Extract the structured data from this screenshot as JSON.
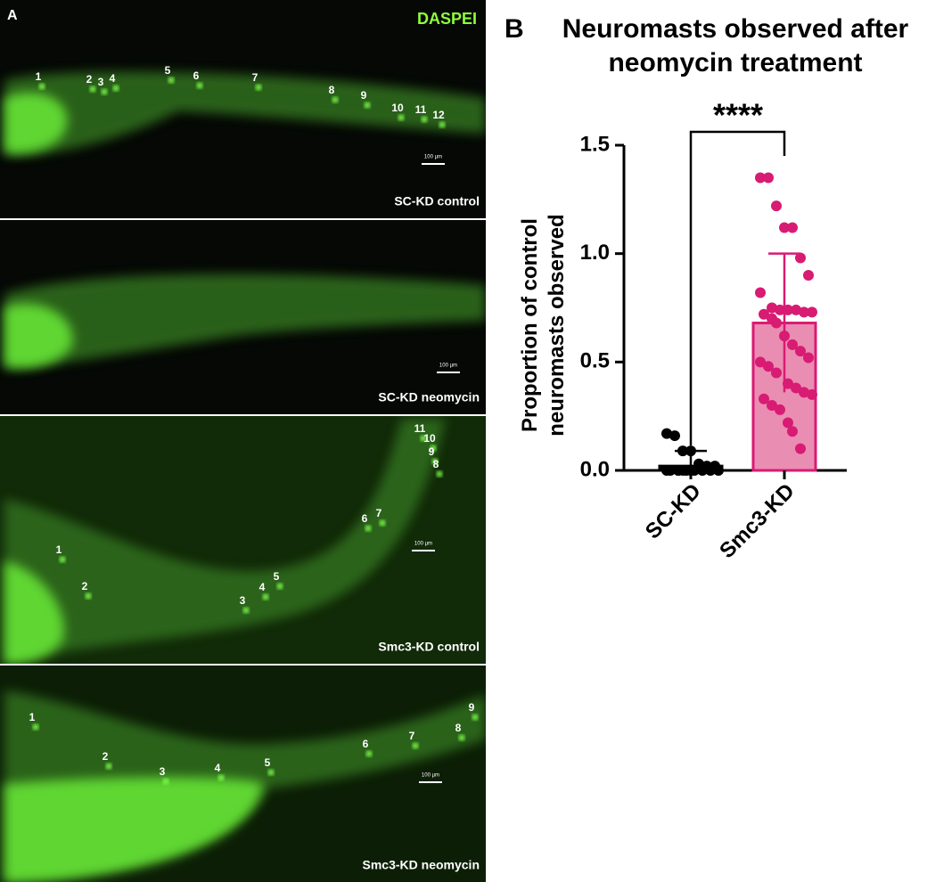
{
  "panel_a": {
    "label": "A",
    "stain": "DASPEI",
    "images": [
      {
        "caption": "SC-KD control",
        "scale": "100 µm",
        "numbers": [
          "1",
          "2",
          "3",
          "4",
          "5",
          "6",
          "7",
          "8",
          "9",
          "10",
          "11",
          "12"
        ]
      },
      {
        "caption": "SC-KD neomycin",
        "scale": "100 µm",
        "numbers": []
      },
      {
        "caption": "Smc3-KD control",
        "scale": "100 µm",
        "numbers": [
          "11",
          "10",
          "9",
          "8",
          "7",
          "6",
          "1",
          "2",
          "3",
          "4",
          "5"
        ]
      },
      {
        "caption": "Smc3-KD neomycin",
        "scale": "100 µm",
        "numbers": [
          "1",
          "2",
          "3",
          "4",
          "5",
          "6",
          "7",
          "8",
          "9"
        ]
      }
    ]
  },
  "panel_b_label": "B",
  "chart_data": {
    "type": "bar",
    "title": "Neuromasts observed after neomycin treatment",
    "ylabel": "Proportion of control neuromasts observed",
    "categories": [
      "SC-KD",
      "Smc3-KD"
    ],
    "values": [
      0.02,
      0.68
    ],
    "errors": [
      0.07,
      0.32
    ],
    "colors": [
      "#000000",
      "#d81b73"
    ],
    "fills": [
      "#000000",
      "#ea8db2"
    ],
    "points": [
      [
        0.17,
        0.16,
        0.09,
        0.09,
        0.03,
        0.02,
        0.02,
        0,
        0,
        0,
        0,
        0,
        0,
        0,
        0,
        0,
        0,
        0
      ],
      [
        1.35,
        1.35,
        1.22,
        1.12,
        1.12,
        0.98,
        0.9,
        0.82,
        0.75,
        0.74,
        0.74,
        0.74,
        0.73,
        0.73,
        0.72,
        0.7,
        0.68,
        0.62,
        0.58,
        0.55,
        0.52,
        0.5,
        0.48,
        0.45,
        0.4,
        0.38,
        0.36,
        0.35,
        0.33,
        0.3,
        0.28,
        0.22,
        0.18,
        0.1
      ]
    ],
    "annotation": "****",
    "ylim": [
      0,
      1.5
    ],
    "yticks": [
      {
        "value": 0,
        "label": "0.0"
      },
      0.5,
      {
        "value": 1,
        "label": "1.0"
      },
      1.5
    ]
  }
}
